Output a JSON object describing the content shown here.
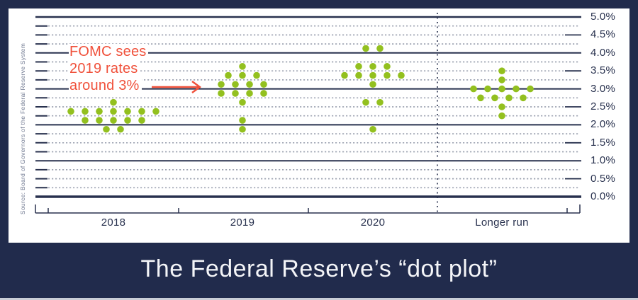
{
  "title": "The Federal Reserve’s “dot plot”",
  "source": "Source: Board of Governors of the Federal Reserve System",
  "annotation": {
    "lines": [
      "FOMC sees",
      "2019 rates",
      "around 3%"
    ],
    "color": "#f0513b",
    "arrow": "right-arrow pointing at 2019 dot cluster"
  },
  "colors": {
    "background": "#212b4c",
    "plot_bg": "#ffffff",
    "navy": "#28314e",
    "grid_dotted": "#a0a6b4",
    "dot": "#93c01f"
  },
  "chart_data": {
    "type": "scatter",
    "title": "The Federal Reserve’s “dot plot”",
    "categories": [
      "2018",
      "2019",
      "2020",
      "Longer run"
    ],
    "y_axis": {
      "min": 0,
      "max": 5,
      "label_step": 0.5,
      "grid_step": 0.25,
      "tick_labels": [
        "5.0%",
        "4.5%",
        "4.0%",
        "3.5%",
        "3.0%",
        "2.5%",
        "2.0%",
        "1.5%",
        "1.0%",
        "0.5%",
        "0.0%"
      ]
    },
    "grid": "solid navy lines at whole percents, dotted gray lines at quarter percents",
    "legend": "none",
    "separator_before_category": "Longer run",
    "series": [
      {
        "category": "2018",
        "dots": [
          {
            "value": 2.625,
            "count": 1
          },
          {
            "value": 2.375,
            "count": 7
          },
          {
            "value": 2.125,
            "count": 5
          },
          {
            "value": 1.875,
            "count": 2
          }
        ]
      },
      {
        "category": "2019",
        "dots": [
          {
            "value": 3.625,
            "count": 1
          },
          {
            "value": 3.375,
            "count": 3
          },
          {
            "value": 3.125,
            "count": 4
          },
          {
            "value": 2.875,
            "count": 4
          },
          {
            "value": 2.625,
            "count": 1
          },
          {
            "value": 2.125,
            "count": 1
          },
          {
            "value": 1.875,
            "count": 1
          }
        ]
      },
      {
        "category": "2020",
        "dots": [
          {
            "value": 4.125,
            "count": 2
          },
          {
            "value": 3.625,
            "count": 3
          },
          {
            "value": 3.375,
            "count": 5
          },
          {
            "value": 3.125,
            "count": 1
          },
          {
            "value": 2.625,
            "count": 2
          },
          {
            "value": 1.875,
            "count": 1
          }
        ]
      },
      {
        "category": "Longer run",
        "dots": [
          {
            "value": 3.5,
            "count": 1
          },
          {
            "value": 3.25,
            "count": 1
          },
          {
            "value": 3.0,
            "count": 5
          },
          {
            "value": 2.75,
            "count": 4
          },
          {
            "value": 2.5,
            "count": 1
          },
          {
            "value": 2.25,
            "count": 1
          }
        ]
      }
    ]
  }
}
